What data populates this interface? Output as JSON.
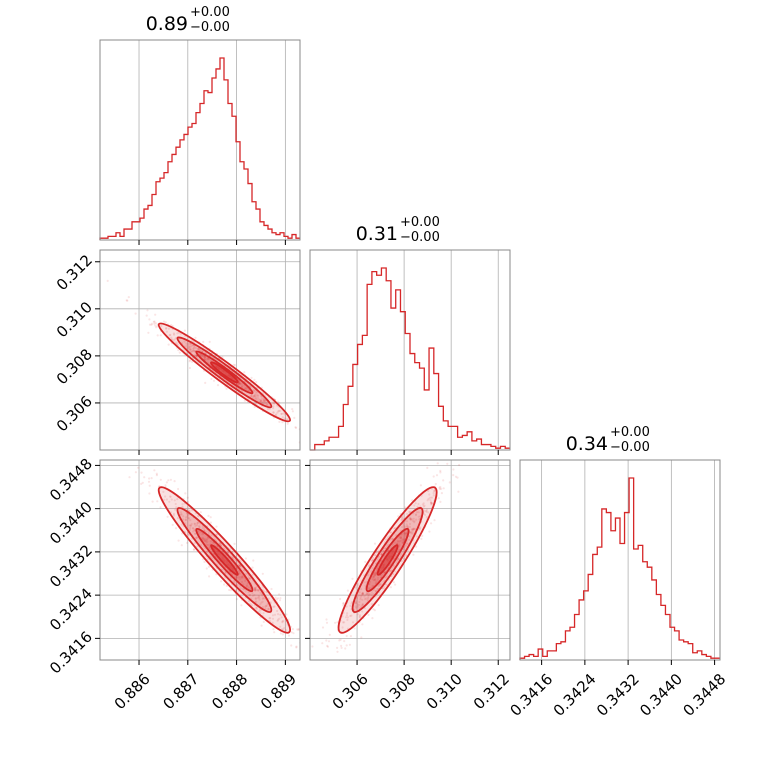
{
  "chart_data": {
    "type": "corner",
    "color": "#d62728",
    "parameters": [
      {
        "title_value": "0.89",
        "title_plus": "+0.00",
        "title_minus": "−0.00",
        "range": [
          0.8852,
          0.8893
        ],
        "ticks": [
          0.886,
          0.887,
          0.888,
          0.889
        ],
        "tick_labels": [
          "0.886",
          "0.887",
          "0.888",
          "0.889"
        ],
        "mean": 0.88775,
        "sd": 0.00055,
        "hist": [
          0.01,
          0.01,
          0.02,
          0.02,
          0.04,
          0.02,
          0.06,
          0.06,
          0.1,
          0.1,
          0.12,
          0.17,
          0.19,
          0.25,
          0.32,
          0.34,
          0.37,
          0.43,
          0.47,
          0.51,
          0.55,
          0.58,
          0.62,
          0.64,
          0.7,
          0.75,
          0.82,
          0.81,
          0.89,
          0.94,
          1.0,
          0.88,
          0.75,
          0.68,
          0.54,
          0.43,
          0.39,
          0.31,
          0.21,
          0.17,
          0.1,
          0.08,
          0.06,
          0.04,
          0.03,
          0.04,
          0.02,
          0.01,
          0.03,
          0.01
        ]
      },
      {
        "title_value": "0.31",
        "title_plus": "+0.00",
        "title_minus": "−0.00",
        "range": [
          0.304,
          0.3125
        ],
        "ticks": [
          0.306,
          0.308,
          0.31,
          0.312
        ],
        "tick_labels": [
          "0.306",
          "0.308",
          "0.310",
          "0.312"
        ],
        "mean": 0.3073,
        "sd": 0.00085,
        "hist": [
          0.0,
          0.03,
          0.03,
          0.05,
          0.07,
          0.07,
          0.13,
          0.25,
          0.35,
          0.47,
          0.58,
          0.63,
          0.91,
          0.98,
          0.96,
          1.0,
          0.93,
          0.78,
          0.88,
          0.76,
          0.64,
          0.53,
          0.48,
          0.45,
          0.33,
          0.56,
          0.42,
          0.24,
          0.16,
          0.13,
          0.13,
          0.07,
          0.08,
          0.1,
          0.05,
          0.06,
          0.03,
          0.03,
          0.02,
          0.01,
          0.02,
          0.01
        ]
      },
      {
        "title_value": "0.34",
        "title_plus": "+0.00",
        "title_minus": "−0.00",
        "range": [
          0.3412,
          0.3449
        ],
        "ticks": [
          0.3416,
          0.3424,
          0.3432,
          0.344,
          0.3448
        ],
        "tick_labels": [
          "0.3416",
          "0.3424",
          "0.3432",
          "0.3440",
          "0.3448"
        ],
        "mean": 0.34305,
        "sd": 0.00055,
        "hist": [
          0.01,
          0.02,
          0.03,
          0.02,
          0.06,
          0.02,
          0.05,
          0.05,
          0.09,
          0.1,
          0.16,
          0.18,
          0.25,
          0.33,
          0.38,
          0.47,
          0.58,
          0.62,
          0.83,
          0.81,
          0.71,
          0.78,
          0.64,
          0.81,
          1.0,
          0.61,
          0.63,
          0.54,
          0.51,
          0.44,
          0.36,
          0.3,
          0.25,
          0.18,
          0.16,
          0.11,
          0.1,
          0.09,
          0.04,
          0.05,
          0.03,
          0.02,
          0.01,
          0.01
        ]
      }
    ],
    "correlations": [
      [
        1,
        -0.97,
        -0.96
      ],
      [
        -0.97,
        1,
        0.93
      ],
      [
        -0.96,
        0.93,
        1
      ]
    ],
    "grid": true,
    "panel_border_color": "#888888",
    "grid_color": "#b0b0b0"
  }
}
